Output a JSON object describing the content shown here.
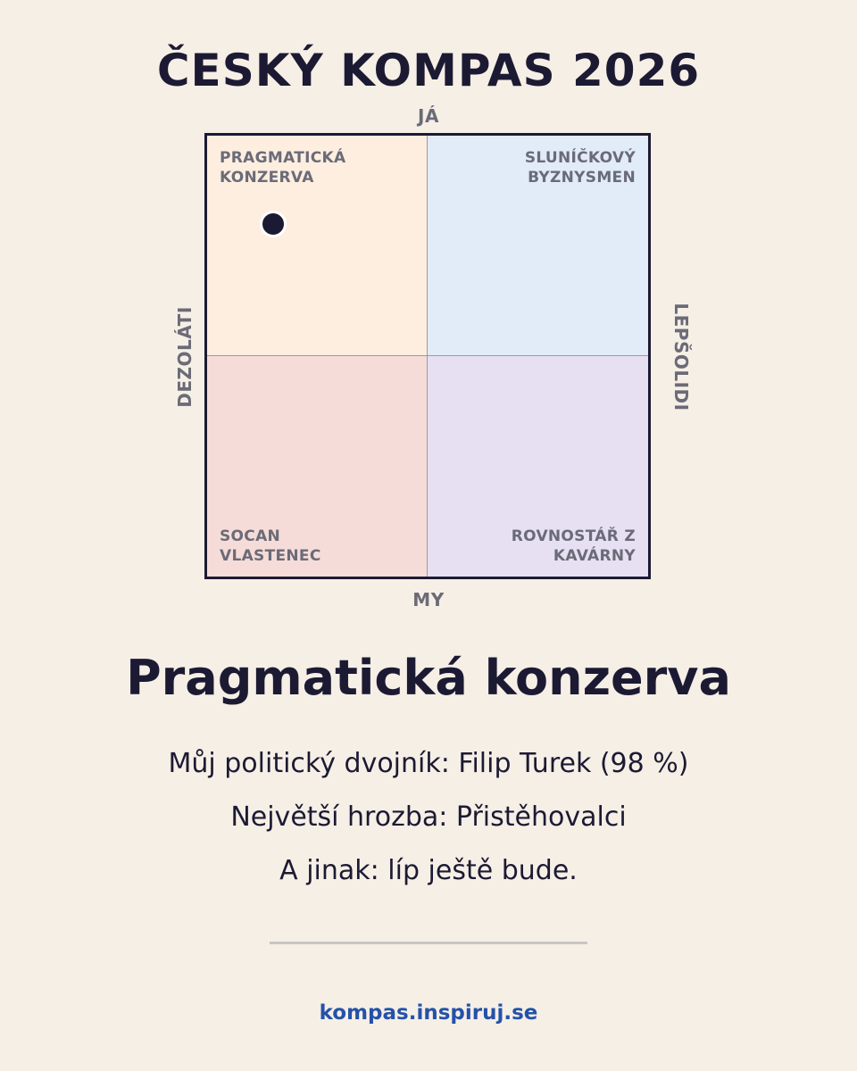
{
  "title": "ČESKÝ KOMPAS 2026",
  "chart_data": {
    "type": "scatter",
    "axes": {
      "top": "JÁ",
      "bottom": "MY",
      "left": "DEZOLÁTI",
      "right": "LEPŠOLIDI"
    },
    "xlim": [
      -1,
      1
    ],
    "ylim": [
      -1,
      1
    ],
    "quadrants": {
      "top_left": "PRAGMATICKÁ\nKONZERVA",
      "top_right": "SLUNÍČKOVÝ\nBYZNYSMEN",
      "bottom_left": "SOCAN\nVLASTENEC",
      "bottom_right": "ROVNOSTÁŘ Z\nKAVÁRNY"
    },
    "quadrant_colors": {
      "top_left": "#fdeee0",
      "top_right": "#e2ebf8",
      "bottom_left": "#f6dcd8",
      "bottom_right": "#e7e0f2"
    },
    "points": [
      {
        "x": -0.7,
        "y": 0.6
      }
    ]
  },
  "result": {
    "type_name": "Pragmatická konzerva",
    "line1": "Můj politický dvojník: Filip Turek (98 %)",
    "line2": "Největší hrozba: Přistěhovalci",
    "line3": "A jinak: líp ještě bude."
  },
  "footer": {
    "url": "kompas.inspiruj.se",
    "url_color": "#2452a8"
  }
}
